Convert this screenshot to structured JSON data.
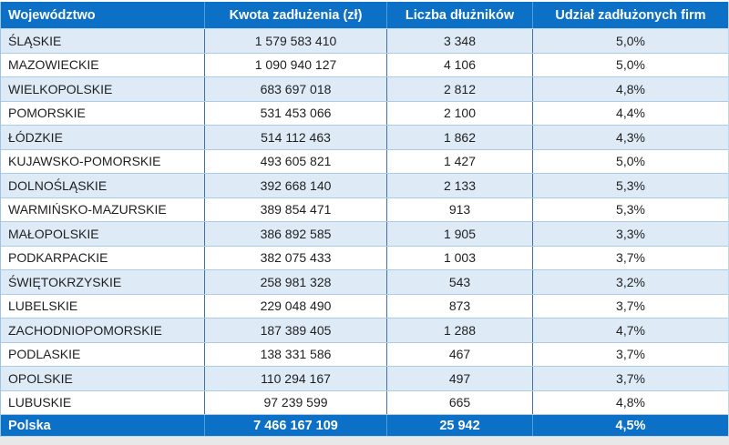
{
  "colors": {
    "header_bg": "#0C70C6",
    "footer_bg": "#0C70C6",
    "stripe_bg": "#DEEBF7",
    "row_bg": "#FFFFFF",
    "horizontal_border": "#A9CCE8",
    "vertical_border_light_rows": "#41719C",
    "vertical_border_dark_rows": "#4C9FE0",
    "header_text": "#FFFFFF",
    "data_text": "#1F1F1F"
  },
  "chart_data": {
    "type": "table",
    "columns": [
      "Województwo",
      "Kwota zadłużenia (zł)",
      "Liczba dłużników",
      "Udział zadłużonych firm"
    ],
    "rows": [
      [
        "ŚLĄSKIE",
        "1 579 583 410",
        "3 348",
        "5,0%"
      ],
      [
        "MAZOWIECKIE",
        "1 090 940 127",
        "4 106",
        "5,0%"
      ],
      [
        "WIELKOPOLSKIE",
        "683 697 018",
        "2 812",
        "4,8%"
      ],
      [
        "POMORSKIE",
        "531 453 066",
        "2 100",
        "4,4%"
      ],
      [
        "ŁÓDZKIE",
        "514 112 463",
        "1 862",
        "4,3%"
      ],
      [
        "KUJAWSKO-POMORSKIE",
        "493 605 821",
        "1 427",
        "5,0%"
      ],
      [
        "DOLNOŚLĄSKIE",
        "392 668 140",
        "2 133",
        "5,3%"
      ],
      [
        "WARMIŃSKO-MAZURSKIE",
        "389 854 471",
        "913",
        "5,3%"
      ],
      [
        "MAŁOPOLSKIE",
        "386 892 585",
        "1 905",
        "3,3%"
      ],
      [
        "PODKARPACKIE",
        "382 075 433",
        "1 003",
        "3,7%"
      ],
      [
        "ŚWIĘTOKRZYSKIE",
        "258 981 328",
        "543",
        "3,2%"
      ],
      [
        "LUBELSKIE",
        "229 048 490",
        "873",
        "3,7%"
      ],
      [
        "ZACHODNIOPOMORSKIE",
        "187 389 405",
        "1 288",
        "4,7%"
      ],
      [
        "PODLASKIE",
        "138 331 586",
        "467",
        "3,7%"
      ],
      [
        "OPOLSKIE",
        "110 294 167",
        "497",
        "3,7%"
      ],
      [
        "LUBUSKIE",
        "97 239 599",
        "665",
        "4,8%"
      ]
    ],
    "footer": [
      "Polska",
      "7 466 167 109",
      "25 942",
      "4,5%"
    ],
    "layout": {
      "striped_rows": "odd",
      "first_column_align": "left",
      "numeric_columns_align": "center"
    }
  }
}
